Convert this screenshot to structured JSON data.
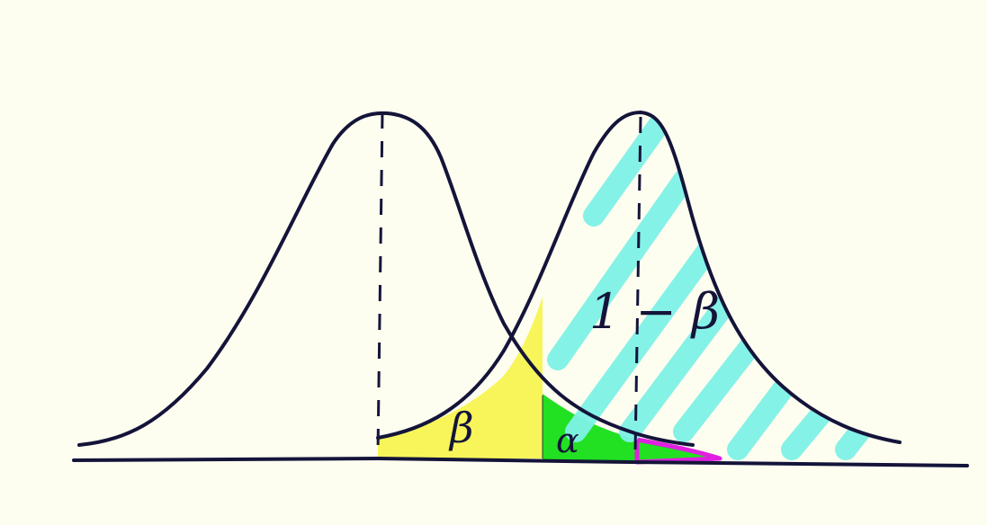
{
  "diagram": {
    "label_beta": "β",
    "label_alpha": "α",
    "label_power": "1 − β",
    "colors": {
      "background": "#fdfdf0",
      "ink": "#14143a",
      "beta_region": "#f7f55a",
      "alpha_region": "#22e022",
      "power_hatch": "#7ff2e6",
      "small_region_outline": "#e020e0"
    }
  }
}
